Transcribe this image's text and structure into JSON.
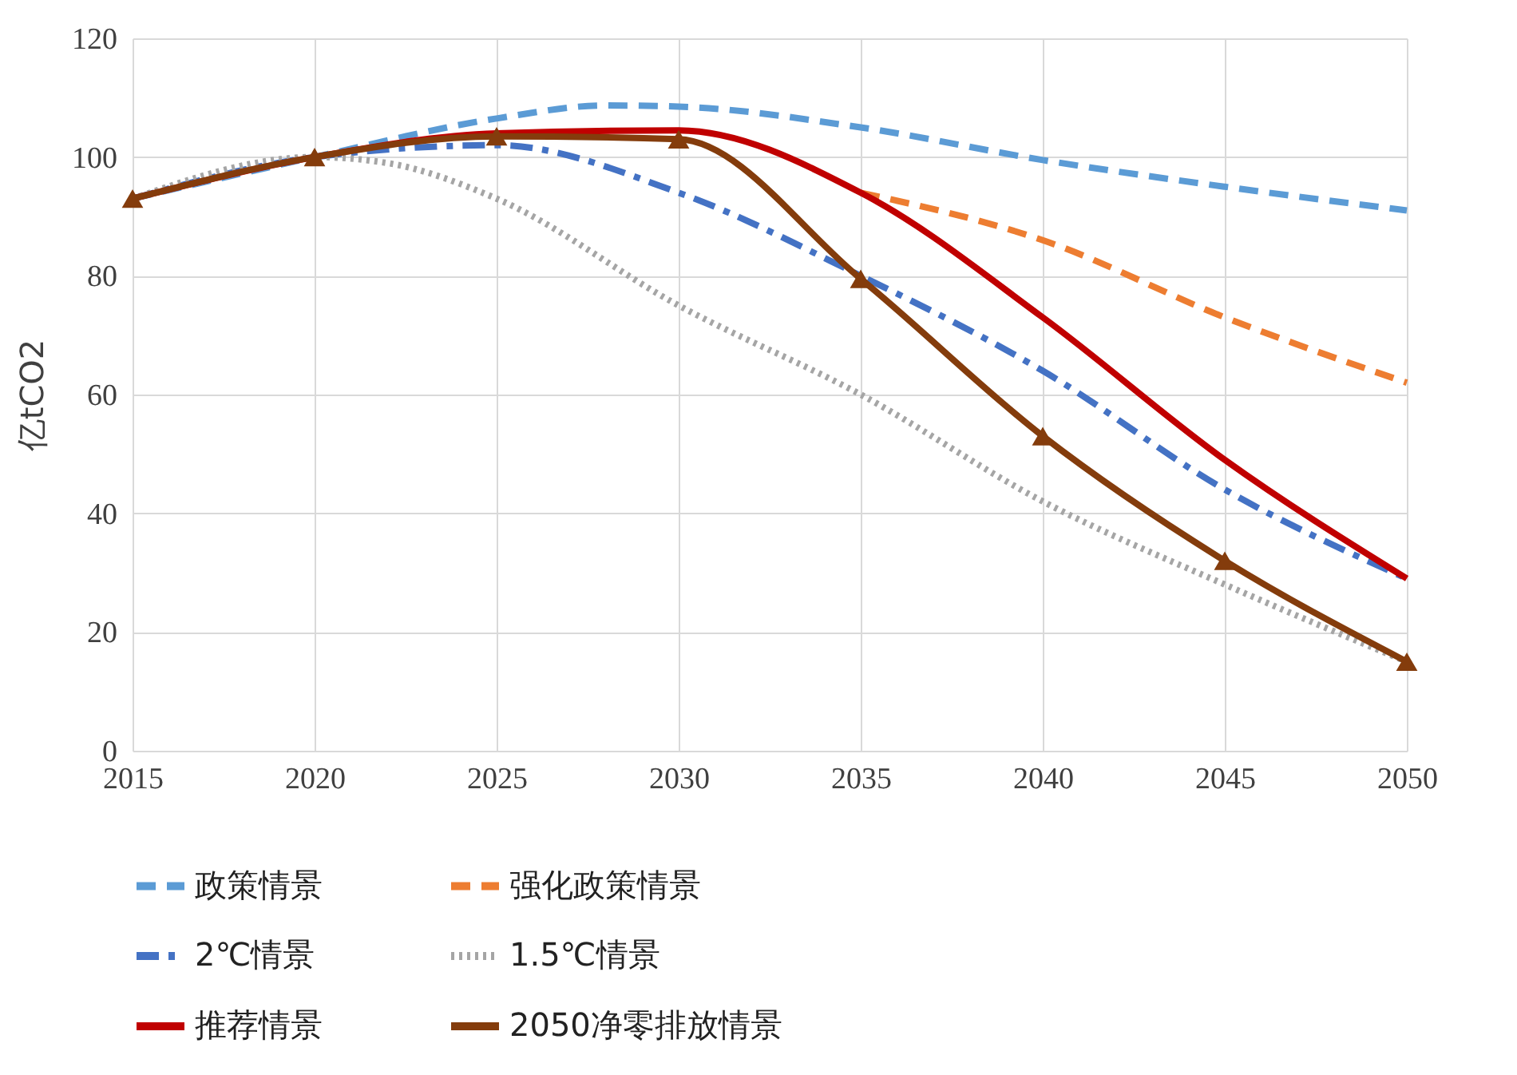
{
  "chart_data": {
    "type": "line",
    "ylabel": "亿tCO2",
    "xlim": [
      2015,
      2050
    ],
    "xticks": [
      2015,
      2020,
      2025,
      2030,
      2035,
      2040,
      2045,
      2050
    ],
    "ylim": [
      0,
      120
    ],
    "yticks": [
      0,
      20,
      40,
      60,
      80,
      100,
      120
    ],
    "grid": true,
    "legend": "bottom",
    "series": [
      {
        "name": "政策情景",
        "color": "#5b9bd5",
        "line_style": "dashed",
        "marker": "none",
        "x": [
          2015,
          2020,
          2025,
          2028,
          2030,
          2035,
          2040,
          2045,
          2050
        ],
        "values": [
          93,
          100,
          106.5,
          108.7,
          108.5,
          105,
          99.5,
          95,
          91
        ]
      },
      {
        "name": "强化政策情景",
        "color": "#ed7d31",
        "line_style": "dashed",
        "marker": "none",
        "x": [
          2035,
          2040,
          2045,
          2050
        ],
        "values": [
          94,
          86,
          73,
          62
        ]
      },
      {
        "name": "2℃情景",
        "color": "#4472c4",
        "line_style": "dashdot",
        "marker": "none",
        "x": [
          2015,
          2020,
          2025,
          2030,
          2035,
          2040,
          2045,
          2050
        ],
        "values": [
          93,
          100,
          102,
          94,
          80,
          64,
          44,
          29
        ]
      },
      {
        "name": "1.5℃情景",
        "color": "#a5a5a5",
        "line_style": "dotted",
        "marker": "none",
        "x": [
          2015,
          2020,
          2022,
          2025,
          2030,
          2035,
          2040,
          2045,
          2050
        ],
        "values": [
          93,
          100,
          99,
          93,
          75,
          60,
          42,
          28,
          15
        ]
      },
      {
        "name": "推荐情景",
        "color": "#c00000",
        "line_style": "solid",
        "marker": "none",
        "x": [
          2015,
          2020,
          2025,
          2030,
          2035,
          2040,
          2045,
          2050
        ],
        "values": [
          93,
          100,
          104,
          104.5,
          94,
          73,
          49,
          29
        ]
      },
      {
        "name": "2050净零排放情景",
        "color": "#843c0c",
        "line_style": "solid",
        "marker": "triangle",
        "x": [
          2015,
          2020,
          2025,
          2030,
          2035,
          2040,
          2045,
          2050
        ],
        "values": [
          93,
          100,
          103.5,
          103,
          79.5,
          53,
          32,
          15
        ]
      }
    ]
  }
}
